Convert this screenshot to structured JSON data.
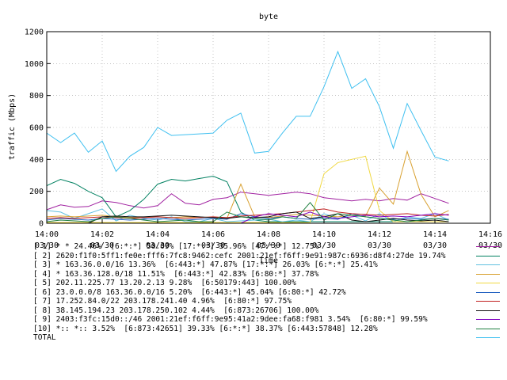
{
  "chart_data": {
    "type": "line",
    "title": "byte",
    "xlabel": "Time",
    "ylabel": "traffic (Mbps)",
    "ylim": [
      0,
      1200
    ],
    "yticks": [
      0,
      200,
      400,
      600,
      800,
      1000,
      1200
    ],
    "xlim": [
      0,
      16
    ],
    "x_unit": "minutes after 14:00 on 03/30",
    "xticks": [
      {
        "x": 0,
        "time": "14:00",
        "date": "03/30"
      },
      {
        "x": 2,
        "time": "14:02",
        "date": "03/30"
      },
      {
        "x": 4,
        "time": "14:04",
        "date": "03/30"
      },
      {
        "x": 6,
        "time": "14:06",
        "date": "03/30"
      },
      {
        "x": 8,
        "time": "14:08",
        "date": "03/30"
      },
      {
        "x": 10,
        "time": "14:10",
        "date": "03/30"
      },
      {
        "x": 12,
        "time": "14:12",
        "date": "03/30"
      },
      {
        "x": 14,
        "time": "14:14",
        "date": "03/30"
      },
      {
        "x": 16,
        "time": "14:16",
        "date": "03/30"
      }
    ],
    "grid": true,
    "x": [
      0,
      0.5,
      1,
      1.5,
      2,
      2.5,
      3,
      3.5,
      4,
      4.5,
      5,
      5.5,
      6,
      6.5,
      7,
      7.5,
      8,
      8.5,
      9,
      9.5,
      10,
      10.5,
      11,
      11.5,
      12,
      12.5,
      13,
      13.5,
      14,
      14.5
    ],
    "series": [
      {
        "name": "[ 1] * * 24.46%  [6:*:*] 50.09% [17:*:*] 35.96% [47:*:*] 12.75%",
        "color": "#a020a0",
        "values": [
          85,
          115,
          100,
          105,
          140,
          130,
          110,
          95,
          110,
          185,
          125,
          115,
          150,
          160,
          195,
          185,
          175,
          185,
          195,
          185,
          160,
          150,
          140,
          150,
          140,
          155,
          145,
          185,
          155,
          125
        ]
      },
      {
        "name": "[ 2] 2620:f1f0:5ff1:fe0e:fff6:7fc8:9462:cefc 2001:21ef:f6ff:9e91:987c:6936:d8f4:27de 19.74%",
        "color": "#008060",
        "values": [
          235,
          275,
          250,
          200,
          160,
          40,
          80,
          150,
          245,
          275,
          265,
          280,
          295,
          260,
          70,
          20,
          10,
          10,
          10,
          10,
          10,
          10,
          10,
          10,
          10,
          10,
          10,
          10,
          10,
          10
        ]
      },
      {
        "name": "[ 3] * 163.36.0.0/16 13.36%  [6:443:*] 47.87% [17:*:*] 26.03% [6:*:*] 25.41%",
        "color": "#60c0e0",
        "values": [
          80,
          70,
          30,
          60,
          90,
          15,
          50,
          30,
          20,
          40,
          10,
          10,
          30,
          10,
          15,
          20,
          25,
          10,
          20,
          10,
          60,
          30,
          50,
          15,
          60,
          10,
          40,
          30,
          60,
          20
        ]
      },
      {
        "name": "[ 4] * 163.36.128.0/18 11.51%  [6:443:*] 42.83% [6:80:*] 37.78%",
        "color": "#d8a030",
        "values": [
          40,
          45,
          40,
          45,
          50,
          40,
          35,
          35,
          40,
          35,
          40,
          35,
          40,
          30,
          245,
          40,
          35,
          45,
          55,
          50,
          45,
          40,
          50,
          45,
          220,
          120,
          450,
          180,
          40,
          80
        ]
      },
      {
        "name": "[ 5] 202.11.225.77 13.20.2.13 9.28%  [6:50179:443] 100.00%",
        "color": "#f0d840",
        "values": [
          5,
          5,
          5,
          5,
          5,
          5,
          5,
          5,
          5,
          5,
          5,
          5,
          5,
          5,
          5,
          5,
          5,
          5,
          5,
          5,
          310,
          380,
          400,
          420,
          80,
          10,
          10,
          10,
          10,
          10
        ]
      },
      {
        "name": "[ 6] 23.0.0.0/8 163.36.0.0/16 5.20%  [6:443:*] 45.04% [6:80:*] 42.72%",
        "color": "#2060c0",
        "values": [
          20,
          30,
          25,
          20,
          30,
          25,
          20,
          25,
          30,
          25,
          20,
          25,
          30,
          25,
          60,
          40,
          30,
          40,
          30,
          25,
          30,
          25,
          60,
          40,
          30,
          25,
          30,
          25,
          30,
          25
        ]
      },
      {
        "name": "[ 7] 17.252.84.0/22 203.178.241.40 4.96%  [6:80:*] 97.75%",
        "color": "#c02020",
        "values": [
          30,
          35,
          30,
          35,
          40,
          35,
          30,
          35,
          40,
          35,
          30,
          35,
          40,
          35,
          45,
          50,
          55,
          60,
          70,
          80,
          90,
          70,
          60,
          55,
          50,
          55,
          60,
          50,
          45,
          55
        ]
      },
      {
        "name": "[ 8] 38.145.194.23 203.178.250.102 4.44%  [6:873:26706] 100.00%",
        "color": "#101010",
        "values": [
          0,
          0,
          0,
          0,
          40,
          45,
          40,
          40,
          45,
          50,
          45,
          40,
          35,
          30,
          40,
          35,
          40,
          60,
          70,
          30,
          40,
          60,
          20,
          10,
          20,
          30,
          20,
          15,
          20,
          10
        ]
      },
      {
        "name": "[ 9] 2403:f3fc:15d0::/46 2001:21ef:f6ff:9e95:41a2:9dee:fa68:f981 3.54%  [6:80:*] 99.59%",
        "color": "#8000c0",
        "values": [
          0,
          0,
          0,
          0,
          0,
          0,
          0,
          0,
          0,
          0,
          0,
          0,
          0,
          0,
          0,
          40,
          60,
          50,
          40,
          70,
          40,
          30,
          40,
          50,
          40,
          45,
          40,
          50,
          60,
          50
        ]
      },
      {
        "name": "[10] *:: *:: 3.52%  [6:873:42651] 39.33% [6:*:*] 38.37% [6:443:57848] 12.28%",
        "color": "#208040",
        "values": [
          10,
          20,
          15,
          10,
          30,
          40,
          30,
          20,
          10,
          15,
          20,
          10,
          10,
          70,
          40,
          30,
          20,
          40,
          30,
          130,
          20,
          60,
          50,
          40,
          30,
          20,
          10,
          20,
          30,
          20
        ]
      },
      {
        "name": "TOTAL",
        "color": "#40c0f0",
        "values": [
          565,
          505,
          565,
          445,
          515,
          325,
          420,
          475,
          600,
          550,
          555,
          560,
          565,
          645,
          690,
          440,
          450,
          565,
          670,
          670,
          855,
          1075,
          845,
          905,
          730,
          470,
          750,
          580,
          415,
          390
        ]
      }
    ]
  }
}
